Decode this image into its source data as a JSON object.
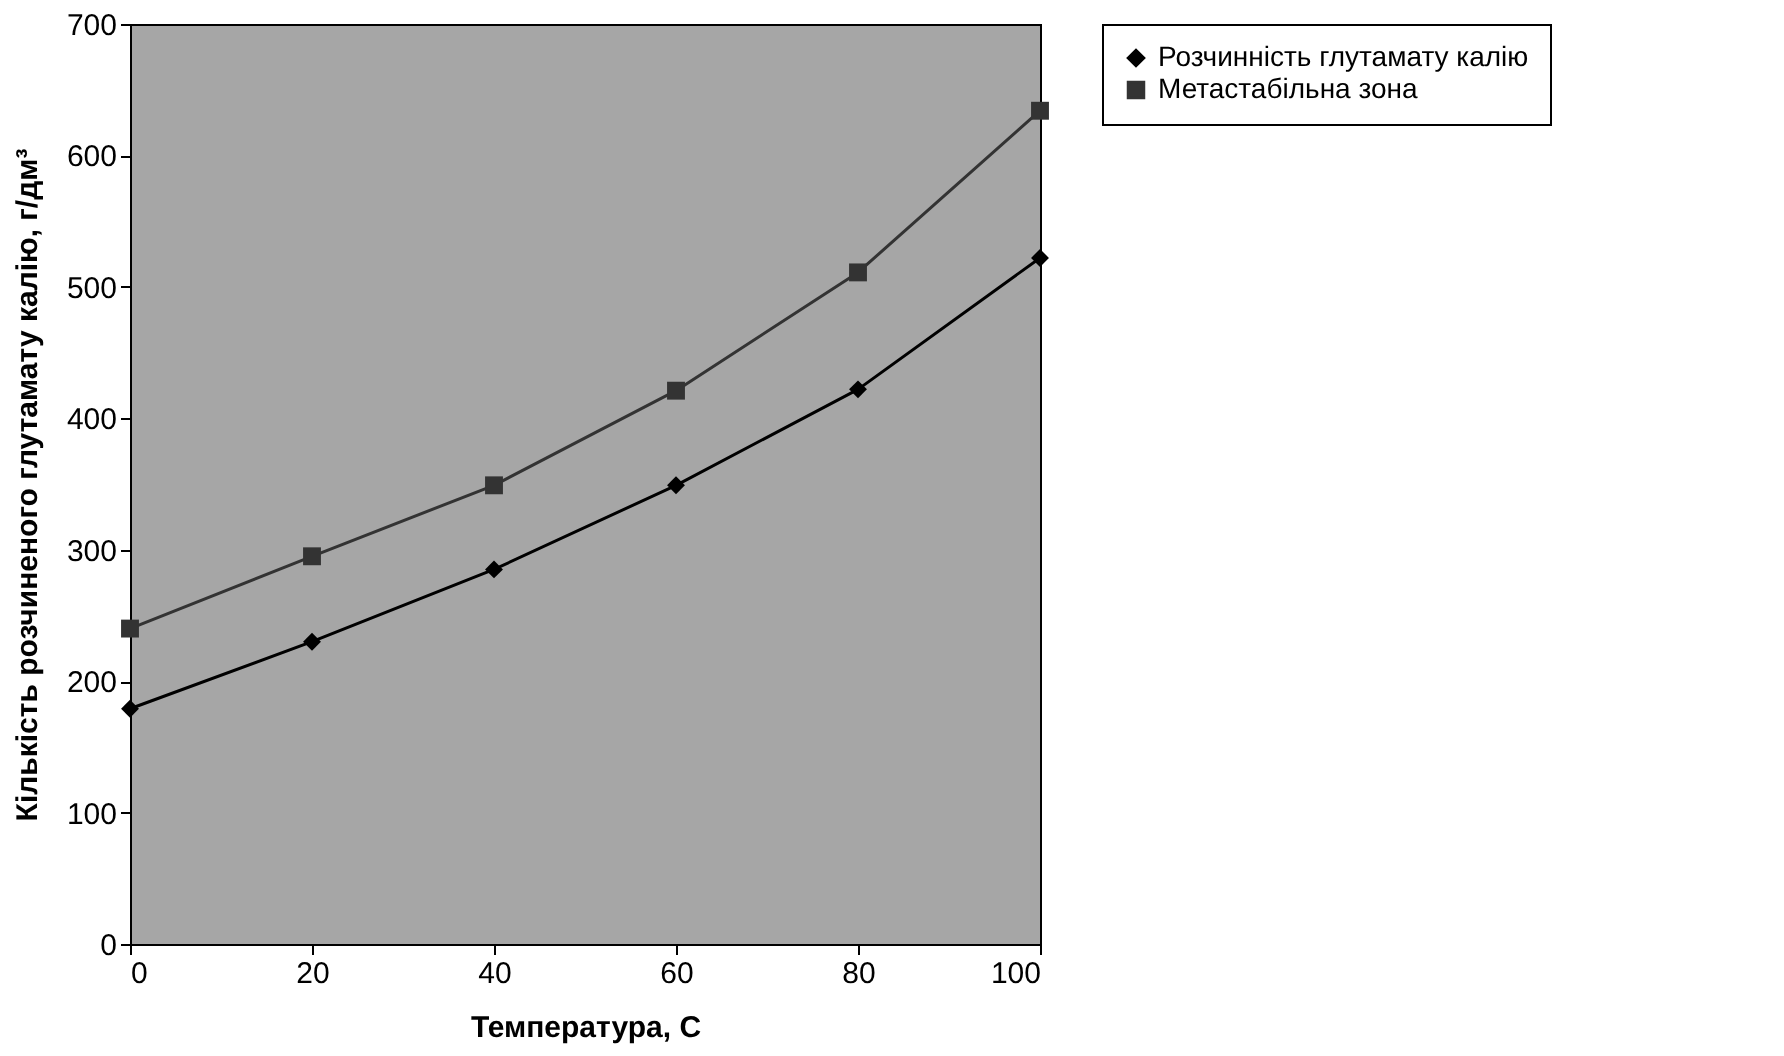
{
  "chart_data": {
    "type": "line",
    "xlabel": "Температура, С",
    "ylabel": "Кількість розчиненого глутамату калію, г/дм³",
    "x": [
      0,
      20,
      40,
      60,
      80,
      100
    ],
    "series": [
      {
        "name": "Розчинність глутамату калію",
        "color": "#000000",
        "marker": "diamond",
        "values": [
          179,
          230,
          285,
          349,
          422,
          522
        ]
      },
      {
        "name": "Метастабільна зона",
        "color": "#333333",
        "marker": "square",
        "values": [
          240,
          295,
          349,
          421,
          511,
          634
        ]
      }
    ],
    "xlim": [
      0,
      100
    ],
    "xticks": [
      0,
      20,
      40,
      60,
      80,
      100
    ],
    "ylim": [
      0,
      700
    ],
    "yticks": [
      0,
      100,
      200,
      300,
      400,
      500,
      600,
      700
    ],
    "grid": false,
    "legend": "right",
    "line_style": "solid"
  }
}
